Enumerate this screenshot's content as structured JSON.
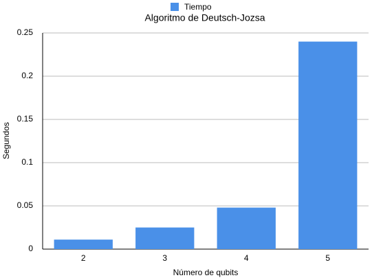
{
  "chart_data": {
    "type": "bar",
    "title": "Algoritmo de Deutsch-Jozsa",
    "x_label": "Número de qubits",
    "y_label": "Segundos",
    "categories": [
      "2",
      "3",
      "4",
      "5"
    ],
    "series": [
      {
        "name": "Tiempo",
        "color": "#4a90e8",
        "values": [
          0.011,
          0.025,
          0.048,
          0.24
        ]
      }
    ],
    "ylim": [
      0,
      0.25
    ],
    "yticks": [
      0,
      0.05,
      0.1,
      0.15,
      0.2,
      0.25
    ],
    "grid": true,
    "legend": "top"
  }
}
